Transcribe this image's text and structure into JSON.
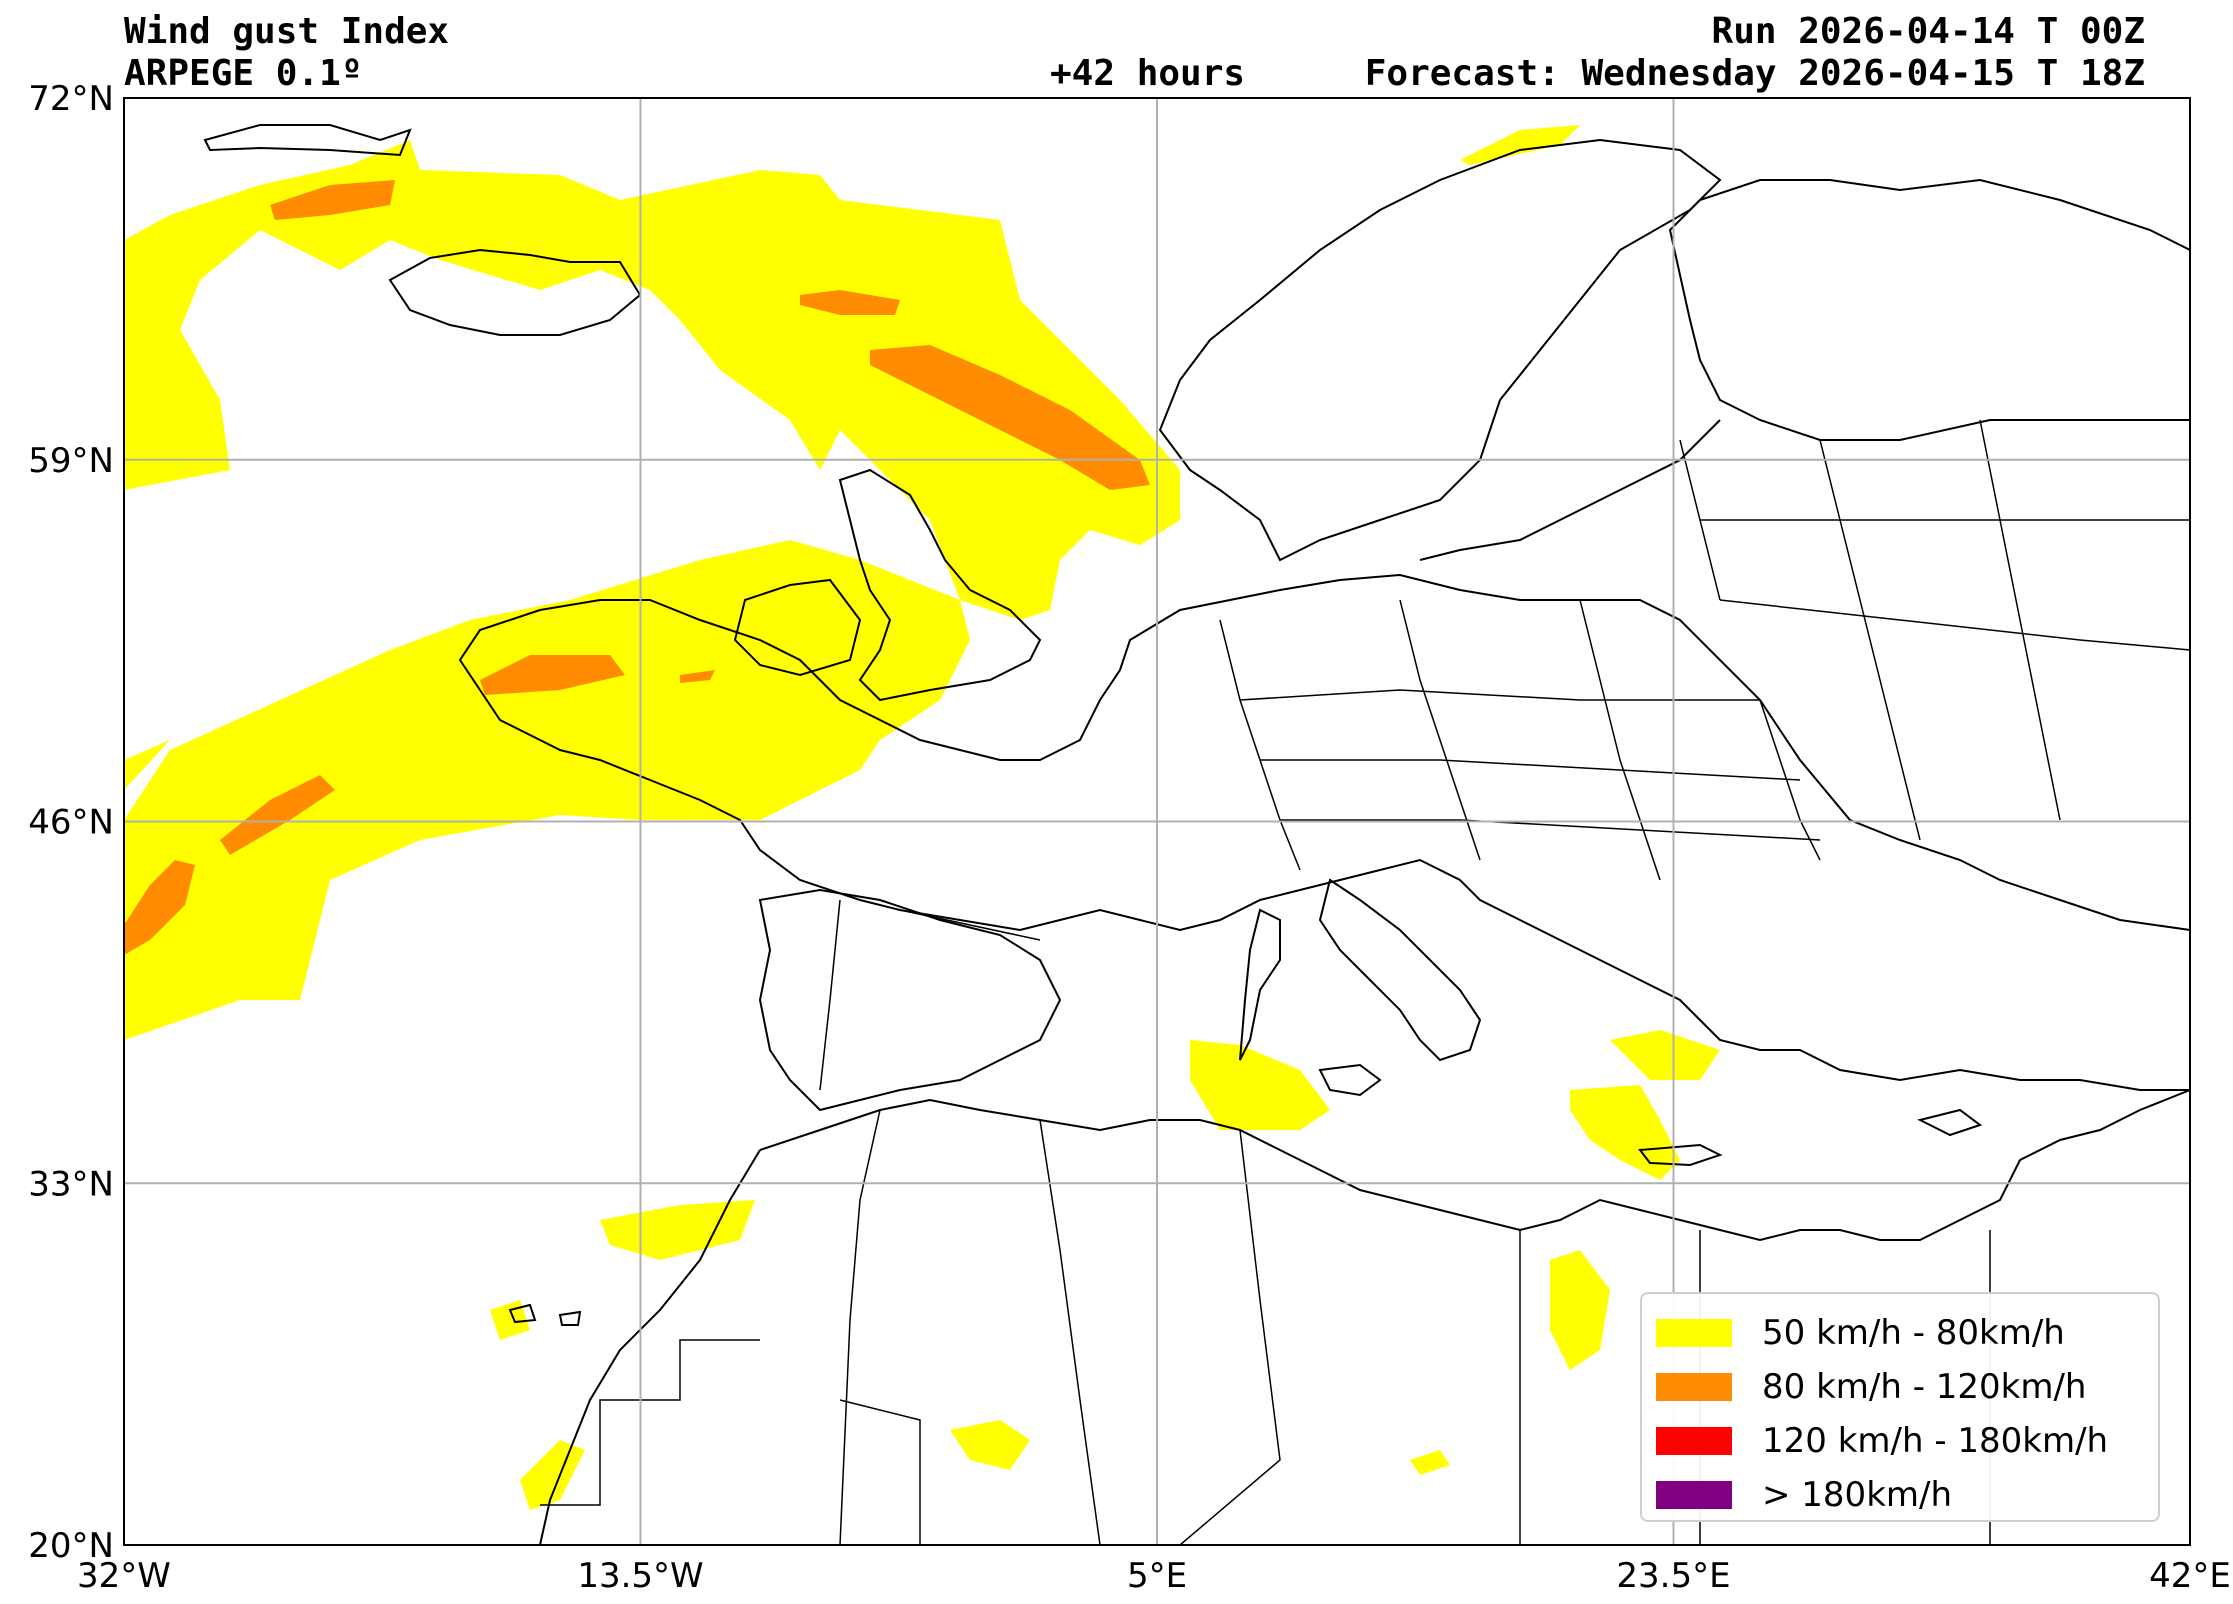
{
  "header": {
    "title": "Wind gust Index",
    "model": "ARPEGE 0.1º",
    "run": "Run 2026-04-14 T 00Z",
    "lead_time": "+42 hours",
    "forecast": "Forecast: Wednesday 2026-04-15 T 18Z"
  },
  "map": {
    "lon_range": [
      -32,
      42
    ],
    "lat_range": [
      20,
      72
    ],
    "lon_ticks": [
      {
        "value": -32,
        "label": "32°W"
      },
      {
        "value": -13.5,
        "label": "13.5°W"
      },
      {
        "value": 5,
        "label": "5°E"
      },
      {
        "value": 23.5,
        "label": "23.5°E"
      },
      {
        "value": 42,
        "label": "42°E"
      }
    ],
    "lat_ticks": [
      {
        "value": 20,
        "label": "20°N"
      },
      {
        "value": 33,
        "label": "33°N"
      },
      {
        "value": 46,
        "label": "46°N"
      },
      {
        "value": 59,
        "label": "59°N"
      },
      {
        "value": 72,
        "label": "72°N"
      }
    ],
    "grid": true
  },
  "legend": {
    "placement": "bottom-right",
    "items": [
      {
        "label": "50 km/h - 80km/h",
        "color": "#ffff00"
      },
      {
        "label": "80 km/h - 120km/h",
        "color": "#ff8c00"
      },
      {
        "label": "120 km/h - 180km/h",
        "color": "#ff0000"
      },
      {
        "label": "> 180km/h",
        "color": "#800080"
      }
    ]
  }
}
